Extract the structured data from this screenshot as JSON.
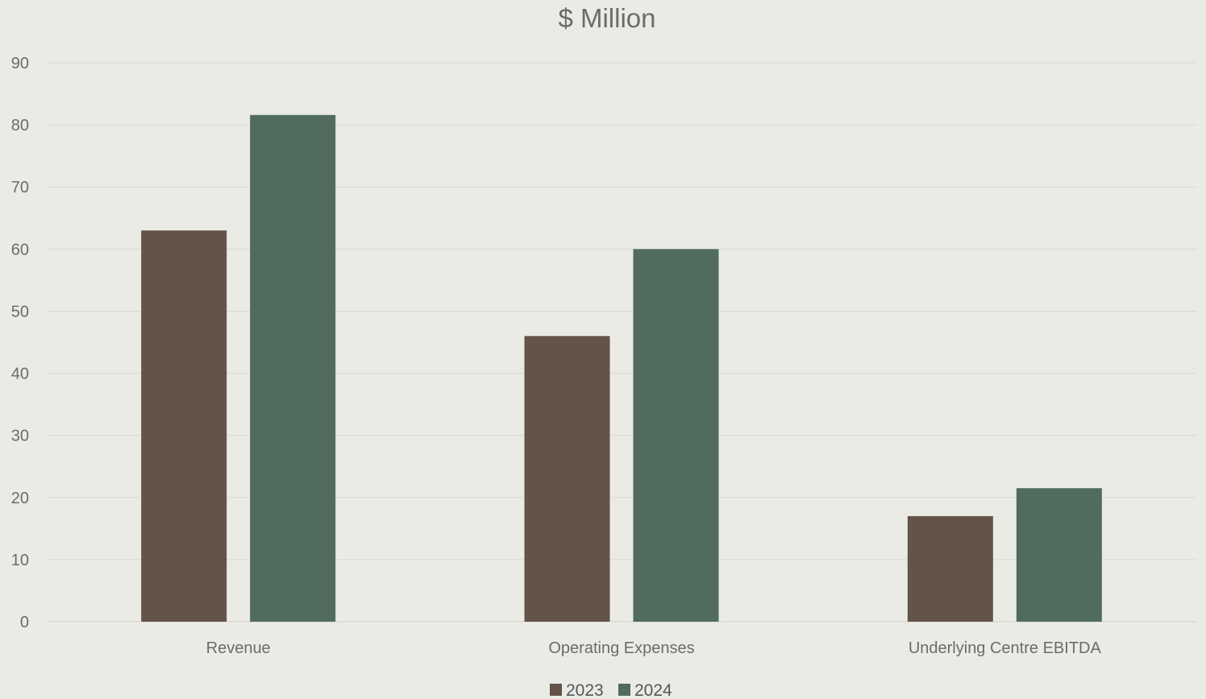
{
  "chart_data": {
    "type": "bar",
    "title": "$ Million",
    "xlabel": "",
    "ylabel": "",
    "categories": [
      "Revenue",
      "Operating Expenses",
      "Underlying Centre EBITDA"
    ],
    "series": [
      {
        "name": "2023",
        "color": "#635348",
        "values": [
          63,
          46,
          17
        ]
      },
      {
        "name": "2024",
        "color": "#516b5f",
        "values": [
          81.6,
          60,
          21.5
        ]
      }
    ],
    "ylim": [
      0,
      90
    ],
    "yticks": [
      0,
      10,
      20,
      30,
      40,
      50,
      60,
      70,
      80,
      90
    ],
    "grid": true,
    "legend_position": "bottom-center"
  }
}
